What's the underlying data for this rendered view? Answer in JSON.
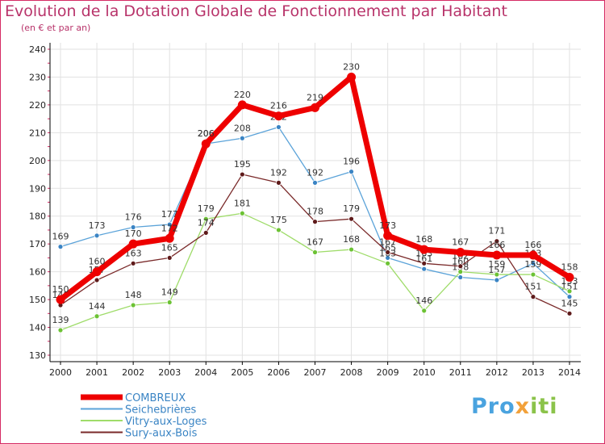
{
  "title": "Evolution de la Dotation Globale de Fonctionnement par Habitant",
  "subtitle": "(en € et par an)",
  "logo_text": "Proxiti",
  "colors": {
    "title": "#b8336a",
    "border": "#d52b64",
    "grid": "#e2e2e2",
    "axis": "#000000"
  },
  "chart_data": {
    "type": "line",
    "x": [
      "2000",
      "2001",
      "2002",
      "2003",
      "2004",
      "2005",
      "2006",
      "2007",
      "2008",
      "2009",
      "2010",
      "2011",
      "2012",
      "2013",
      "2014"
    ],
    "ylim": [
      130,
      240
    ],
    "yticks": [
      130,
      140,
      150,
      160,
      170,
      180,
      190,
      200,
      210,
      220,
      230,
      240
    ],
    "grid": true,
    "legend_position": "bottom-left",
    "series": [
      {
        "name": "Seichebrières",
        "color": "#5ba3d9",
        "marker": "#3a84c4",
        "width": 1.3,
        "values": [
          169,
          173,
          176,
          177,
          206,
          208,
          212,
          192,
          196,
          165,
          161,
          158,
          157,
          163,
          151
        ]
      },
      {
        "name": "Vitry-aux-Loges",
        "color": "#9fdc6a",
        "marker": "#6cc234",
        "width": 1.3,
        "values": [
          139,
          144,
          148,
          149,
          179,
          181,
          175,
          167,
          168,
          163,
          146,
          160,
          159,
          159,
          153
        ]
      },
      {
        "name": "Sury-aux-Bois",
        "color": "#7a2a2a",
        "marker": "#5e1a1a",
        "width": 1.3,
        "values": [
          148,
          157,
          163,
          165,
          174,
          195,
          192,
          178,
          179,
          167,
          163,
          162,
          171,
          151,
          145
        ]
      },
      {
        "name": "COMBREUX",
        "color": "#ee0000",
        "marker": "#ee0000",
        "width": 7,
        "values": [
          150,
          160,
          170,
          172,
          206,
          220,
          216,
          219,
          230,
          173,
          168,
          167,
          166,
          166,
          158
        ]
      }
    ],
    "legend_order": [
      "COMBREUX",
      "Seichebrières",
      "Vitry-aux-Loges",
      "Sury-aux-Bois"
    ]
  }
}
